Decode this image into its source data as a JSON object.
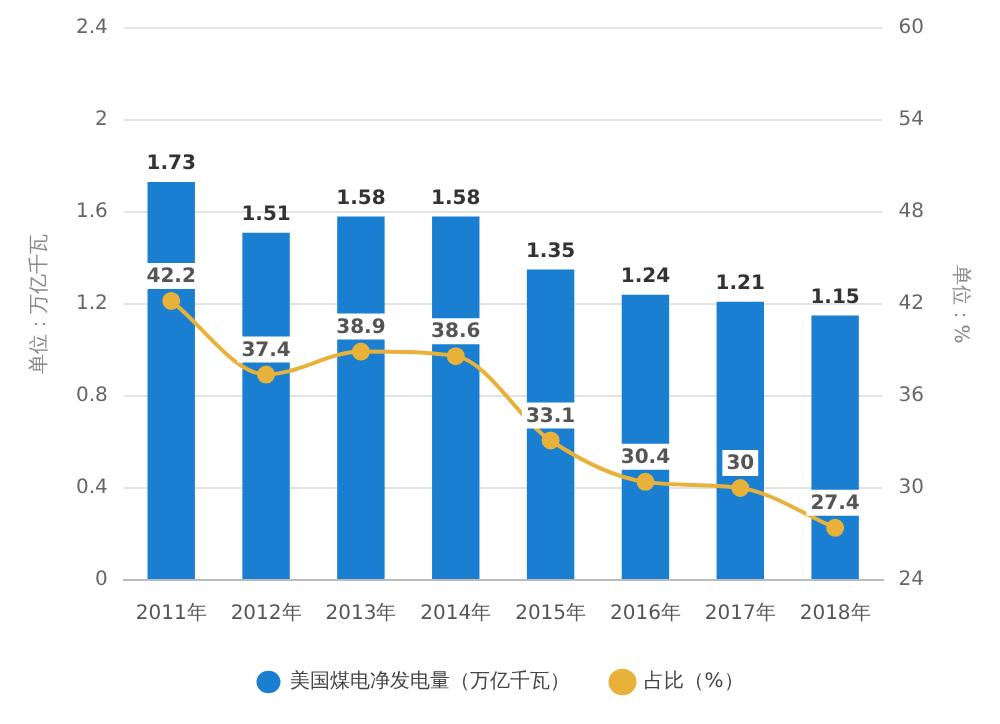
{
  "chart_data": {
    "type": "bar",
    "categories": [
      "2011年",
      "2012年",
      "2013年",
      "2014年",
      "2015年",
      "2016年",
      "2017年",
      "2018年"
    ],
    "series": [
      {
        "name": "美国煤电净发电量（万亿千瓦）",
        "color": "#1a7fd0",
        "values": [
          1.73,
          1.51,
          1.58,
          1.58,
          1.35,
          1.24,
          1.21,
          1.15
        ]
      },
      {
        "name": "占比（%）",
        "type": "line",
        "axis": "y2",
        "color": "#e8b23a",
        "values": [
          42.2,
          37.4,
          38.9,
          38.6,
          33.1,
          30.4,
          30,
          27.4
        ]
      }
    ],
    "ylabel": "单位：万亿千瓦",
    "y2label": "单位：%",
    "ylim": [
      0,
      2.4
    ],
    "yticks": [
      0,
      0.4,
      0.8,
      1.2,
      1.6,
      2,
      2.4
    ],
    "y2lim": [
      24,
      60
    ],
    "y2ticks": [
      24,
      30,
      36,
      42,
      48,
      54,
      60
    ],
    "grid": "y",
    "legend": "bottom",
    "marker": "circle",
    "data_labels": true
  }
}
